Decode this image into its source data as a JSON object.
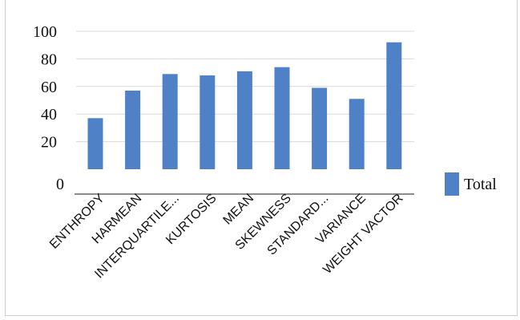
{
  "chart_data": {
    "type": "bar",
    "categories": [
      "ENTHROPY",
      "HARMEAN",
      "INTERQUARTILE...",
      "KURTOSIS",
      "MEAN",
      "SKEWNESS",
      "STANDARD...",
      "VARIANCE",
      "WEIGHT VACTOR"
    ],
    "series": [
      {
        "name": "Total",
        "values": [
          37,
          57,
          69,
          68,
          71,
          74,
          59,
          51,
          92
        ],
        "color": "#4f81c7"
      }
    ],
    "y_ticks": [
      {
        "value": 0,
        "label": "0"
      },
      {
        "value": 20,
        "label": "20"
      },
      {
        "value": 40,
        "label": "40"
      },
      {
        "value": 60,
        "label": "60"
      },
      {
        "value": 80,
        "label": "80"
      },
      {
        "value": 100,
        "label": "100"
      }
    ],
    "ylim": [
      0,
      100
    ],
    "title": "",
    "xlabel": "",
    "ylabel": "",
    "grid": true,
    "legend_position": "right"
  }
}
